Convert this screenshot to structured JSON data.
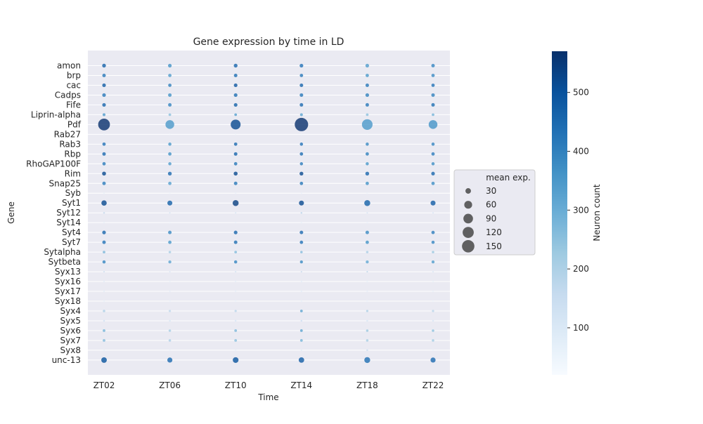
{
  "chart_data": {
    "type": "scatter",
    "subtype": "bubble",
    "title": "Gene expression by time in LD",
    "xlabel": "Time",
    "ylabel": "Gene",
    "categories": [
      "ZT02",
      "ZT06",
      "ZT10",
      "ZT14",
      "ZT18",
      "ZT22"
    ],
    "genes": [
      "amon",
      "brp",
      "cac",
      "Cadps",
      "Fife",
      "Liprin-alpha",
      "Pdf",
      "Rab27",
      "Rab3",
      "Rbp",
      "RhoGAP100F",
      "Rim",
      "Snap25",
      "Syb",
      "Syt1",
      "Syt12",
      "Syt14",
      "Syt4",
      "Syt7",
      "Sytalpha",
      "Sytbeta",
      "Syx13",
      "Syx16",
      "Syx17",
      "Syx18",
      "Syx4",
      "Syx5",
      "Syx6",
      "Syx7",
      "Syx8",
      "unc-13"
    ],
    "size_metric": "mean exp.",
    "color_metric": "Neuron count",
    "size_legend": {
      "title": "mean exp.",
      "values": [
        30,
        60,
        90,
        120,
        150
      ]
    },
    "colorbar": {
      "label": "Neuron count",
      "range": [
        20,
        570
      ],
      "ticks": [
        100,
        200,
        300,
        400,
        500
      ],
      "colormap": [
        "#f7fbff",
        "#deebf7",
        "#c6dbef",
        "#9ecae1",
        "#6baed6",
        "#4292c6",
        "#2171b5",
        "#08519c",
        "#08306b"
      ]
    },
    "mean_expression": [
      [
        14,
        13,
        14,
        13,
        13,
        12
      ],
      [
        12,
        11,
        12,
        11,
        11,
        11
      ],
      [
        13,
        11,
        13,
        12,
        12,
        11
      ],
      [
        13,
        12,
        13,
        12,
        13,
        12
      ],
      [
        13,
        12,
        13,
        12,
        12,
        12
      ],
      [
        8,
        7,
        7,
        8,
        7,
        7
      ],
      [
        135,
        75,
        95,
        175,
        110,
        75
      ],
      [
        2,
        2,
        2,
        2,
        2,
        2
      ],
      [
        11,
        10,
        11,
        10,
        10,
        10
      ],
      [
        12,
        11,
        12,
        11,
        11,
        11
      ],
      [
        11,
        10,
        11,
        10,
        10,
        10
      ],
      [
        15,
        14,
        15,
        14,
        14,
        13
      ],
      [
        12,
        11,
        12,
        11,
        11,
        11
      ],
      [
        2,
        2,
        2,
        2,
        2,
        2
      ],
      [
        28,
        24,
        35,
        24,
        35,
        24
      ],
      [
        3,
        2,
        2,
        3,
        2,
        2
      ],
      [
        2,
        2,
        2,
        2,
        2,
        2
      ],
      [
        13,
        12,
        13,
        12,
        12,
        11
      ],
      [
        12,
        11,
        12,
        11,
        11,
        10
      ],
      [
        7,
        6,
        7,
        6,
        6,
        6
      ],
      [
        10,
        9,
        10,
        9,
        9,
        9
      ],
      [
        2,
        2,
        2,
        2,
        2,
        2
      ],
      [
        2,
        2,
        2,
        2,
        2,
        2
      ],
      [
        2,
        2,
        2,
        2,
        2,
        2
      ],
      [
        2,
        2,
        2,
        2,
        2,
        2
      ],
      [
        6,
        5,
        5,
        7,
        5,
        5
      ],
      [
        3,
        3,
        3,
        3,
        3,
        3
      ],
      [
        7,
        6,
        7,
        7,
        6,
        6
      ],
      [
        7,
        6,
        7,
        7,
        6,
        6
      ],
      [
        2,
        2,
        2,
        2,
        3,
        2
      ],
      [
        30,
        25,
        32,
        29,
        34,
        25
      ]
    ],
    "neuron_count": [
      [
        470,
        360,
        460,
        430,
        340,
        390
      ],
      [
        420,
        340,
        440,
        420,
        350,
        380
      ],
      [
        480,
        400,
        490,
        460,
        420,
        430
      ],
      [
        420,
        360,
        440,
        420,
        400,
        400
      ],
      [
        460,
        390,
        470,
        450,
        420,
        440
      ],
      [
        340,
        250,
        330,
        320,
        250,
        280
      ],
      [
        570,
        350,
        520,
        570,
        350,
        360
      ],
      [
        40,
        30,
        40,
        30,
        30,
        30
      ],
      [
        430,
        350,
        450,
        430,
        380,
        390
      ],
      [
        450,
        360,
        460,
        440,
        400,
        410
      ],
      [
        410,
        340,
        420,
        410,
        350,
        370
      ],
      [
        520,
        450,
        520,
        520,
        460,
        460
      ],
      [
        410,
        330,
        420,
        420,
        360,
        370
      ],
      [
        60,
        40,
        50,
        50,
        40,
        40
      ],
      [
        520,
        470,
        540,
        520,
        470,
        480
      ],
      [
        160,
        120,
        110,
        180,
        110,
        110
      ],
      [
        60,
        40,
        50,
        60,
        50,
        40
      ],
      [
        460,
        380,
        460,
        450,
        380,
        410
      ],
      [
        430,
        350,
        440,
        430,
        360,
        390
      ],
      [
        270,
        210,
        260,
        260,
        200,
        230
      ],
      [
        390,
        320,
        390,
        380,
        310,
        340
      ],
      [
        150,
        110,
        130,
        160,
        180,
        110
      ],
      [
        80,
        60,
        70,
        80,
        60,
        60
      ],
      [
        80,
        70,
        70,
        80,
        70,
        60
      ],
      [
        60,
        50,
        50,
        60,
        50,
        40
      ],
      [
        200,
        170,
        180,
        320,
        200,
        180
      ],
      [
        130,
        110,
        110,
        140,
        110,
        110
      ],
      [
        280,
        210,
        270,
        320,
        230,
        250
      ],
      [
        260,
        200,
        250,
        280,
        210,
        220
      ],
      [
        60,
        50,
        60,
        80,
        140,
        50
      ],
      [
        500,
        450,
        500,
        480,
        440,
        450
      ]
    ]
  }
}
